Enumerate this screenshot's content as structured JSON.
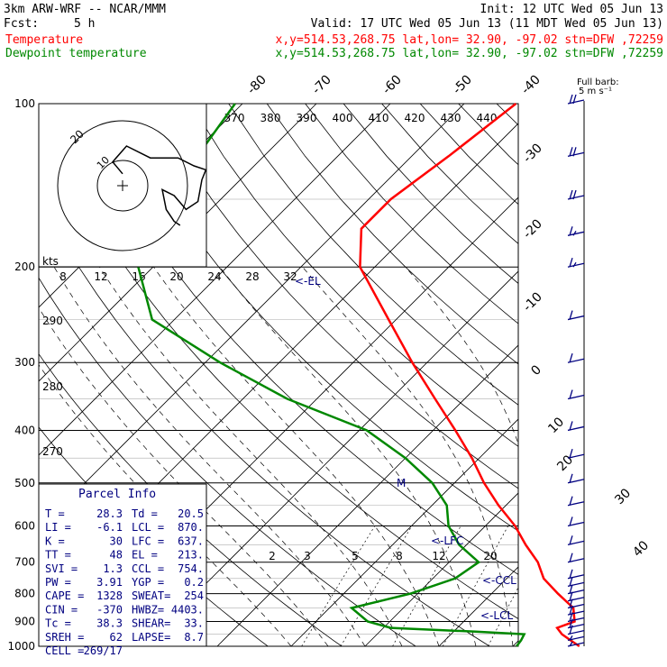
{
  "header": {
    "model": "3km ARW-WRF -- NCAR/MMM",
    "init": "Init: 12 UTC Wed 05 Jun 13",
    "fcst_label": "Fcst:",
    "fcst_value": "5 h",
    "valid": "Valid: 17 UTC Wed 05 Jun 13 (11 MDT Wed 05 Jun 13)"
  },
  "legend": [
    {
      "name": "Temperature",
      "color": "#ff0000",
      "info": "x,y=514.53,268.75   lat,lon= 32.90, -97.02  stn=DFW ,72259"
    },
    {
      "name": "Dewpoint temperature",
      "color": "#008800",
      "info": "x,y=514.53,268.75   lat,lon= 32.90, -97.02  stn=DFW ,72259"
    }
  ],
  "barb_label": {
    "line1": "Full barb:",
    "line2": "5 m s⁻¹"
  },
  "hodograph": {
    "ring_labels": [
      "20",
      "10"
    ],
    "kts_label": "kts",
    "points": [
      [
        0,
        6
      ],
      [
        -5,
        12
      ],
      [
        2,
        20
      ],
      [
        14,
        14
      ],
      [
        28,
        14
      ],
      [
        36,
        10
      ],
      [
        42,
        8
      ],
      [
        40,
        3
      ],
      [
        38,
        -8
      ],
      [
        32,
        -12
      ],
      [
        26,
        -5
      ],
      [
        20,
        -2
      ],
      [
        22,
        -12
      ],
      [
        26,
        -18
      ],
      [
        29,
        -20
      ]
    ]
  },
  "parcel": {
    "title": "Parcel Info",
    "rows": [
      [
        "T  =",
        "28.3",
        "Td =",
        "20.5"
      ],
      [
        "LI =",
        "-6.1",
        "LCL =",
        "870."
      ],
      [
        "K  =",
        "30",
        "LFC =",
        "637."
      ],
      [
        "TT =",
        "48",
        "EL  =",
        "213."
      ],
      [
        "SVI =",
        "1.3",
        "CCL =",
        "754."
      ],
      [
        "PW =",
        "3.91",
        "YGP =",
        "0.2"
      ],
      [
        "CAPE =",
        "1328",
        "SWEAT=",
        "254"
      ],
      [
        "CIN =",
        "-370",
        "HWBZ=",
        "4403."
      ],
      [
        "Tc =",
        "38.3",
        "SHEAR=",
        "33."
      ],
      [
        "SREH =",
        "62",
        "LAPSE=",
        "8.7"
      ],
      [
        "CELL =",
        "269/17",
        "",
        ""
      ]
    ]
  },
  "annotations": {
    "el": "<-EL",
    "lfc": "<-LFC",
    "ccl": "<-CCL",
    "lcl": "<-LCL",
    "m": "M"
  },
  "chart_data": {
    "type": "line",
    "title": "",
    "xlabel": "",
    "ylabel": "",
    "pressure_levels": [
      100,
      200,
      300,
      400,
      500,
      600,
      700,
      800,
      900,
      1000
    ],
    "pressure_range": [
      100,
      1000
    ],
    "isotherm_labels": [
      -80,
      -70,
      -60,
      -50,
      -40,
      -30,
      -20,
      -10,
      0,
      10,
      20,
      30,
      40
    ],
    "theta_labels": [
      370,
      380,
      390,
      400,
      410,
      420,
      430,
      440
    ],
    "theta_side_labels": [
      290,
      280,
      270
    ],
    "mixing_ratio_top_labels": [
      8,
      12,
      16,
      20,
      24,
      28,
      32
    ],
    "mixing_ratio_low_labels": [
      2,
      3,
      5,
      8,
      12,
      20
    ],
    "series": [
      {
        "name": "Temperature",
        "color": "#ff0000",
        "points": [
          [
            1000,
            29
          ],
          [
            975,
            27
          ],
          [
            950,
            25
          ],
          [
            925,
            23.5
          ],
          [
            900,
            25
          ],
          [
            850,
            23
          ],
          [
            800,
            19
          ],
          [
            750,
            15
          ],
          [
            700,
            12
          ],
          [
            650,
            8
          ],
          [
            600,
            4
          ],
          [
            550,
            -1
          ],
          [
            500,
            -6
          ],
          [
            450,
            -11
          ],
          [
            400,
            -17
          ],
          [
            350,
            -24
          ],
          [
            300,
            -32
          ],
          [
            250,
            -41
          ],
          [
            200,
            -52
          ],
          [
            170,
            -57
          ],
          [
            150,
            -57
          ],
          [
            125,
            -55
          ],
          [
            100,
            -53
          ]
        ]
      },
      {
        "name": "Dewpoint temperature",
        "color": "#008800",
        "points": [
          [
            1000,
            20.5
          ],
          [
            975,
            20.3
          ],
          [
            950,
            19.9
          ],
          [
            940,
            13
          ],
          [
            925,
            1
          ],
          [
            900,
            -3
          ],
          [
            850,
            -7
          ],
          [
            800,
            -1
          ],
          [
            750,
            3
          ],
          [
            700,
            4
          ],
          [
            650,
            -1
          ],
          [
            600,
            -5
          ],
          [
            550,
            -8
          ],
          [
            500,
            -13
          ],
          [
            450,
            -20
          ],
          [
            400,
            -29
          ],
          [
            350,
            -44
          ],
          [
            300,
            -58
          ],
          [
            250,
            -73
          ],
          [
            200,
            -82
          ],
          [
            170,
            -89
          ],
          [
            150,
            -90
          ],
          [
            125,
            -89
          ],
          [
            100,
            -91
          ]
        ]
      }
    ],
    "wind_barbs": [
      {
        "p": 1000,
        "speed": 5
      },
      {
        "p": 975,
        "speed": 7
      },
      {
        "p": 950,
        "speed": 8
      },
      {
        "p": 925,
        "speed": 10
      },
      {
        "p": 900,
        "speed": 10
      },
      {
        "p": 875,
        "speed": 12
      },
      {
        "p": 850,
        "speed": 12
      },
      {
        "p": 825,
        "speed": 12
      },
      {
        "p": 800,
        "speed": 12
      },
      {
        "p": 775,
        "speed": 12
      },
      {
        "p": 750,
        "speed": 10
      },
      {
        "p": 700,
        "speed": 10
      },
      {
        "p": 650,
        "speed": 8
      },
      {
        "p": 600,
        "speed": 8
      },
      {
        "p": 550,
        "speed": 10
      },
      {
        "p": 500,
        "speed": 10
      },
      {
        "p": 450,
        "speed": 12
      },
      {
        "p": 400,
        "speed": 12
      },
      {
        "p": 350,
        "speed": 12
      },
      {
        "p": 300,
        "speed": 12
      },
      {
        "p": 250,
        "speed": 12
      },
      {
        "p": 200,
        "speed": 15
      },
      {
        "p": 175,
        "speed": 17
      },
      {
        "p": 150,
        "speed": 18
      },
      {
        "p": 125,
        "speed": 18
      },
      {
        "p": 100,
        "speed": 18
      }
    ]
  }
}
